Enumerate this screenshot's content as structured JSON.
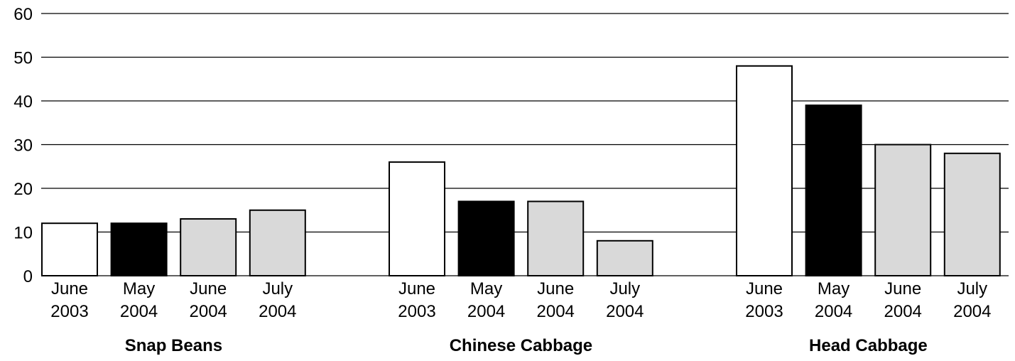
{
  "chart_data": {
    "type": "bar",
    "title": "",
    "xlabel": "",
    "ylabel": "",
    "ylim": [
      0,
      60
    ],
    "yticks": [
      0,
      10,
      20,
      30,
      40,
      50,
      60
    ],
    "grid": true,
    "categories": [
      [
        "June",
        "2003"
      ],
      [
        "May",
        "2004"
      ],
      [
        "June",
        "2004"
      ],
      [
        "July",
        "2004"
      ]
    ],
    "colors": [
      "#ffffff",
      "#000000",
      "#d9d9d9",
      "#d9d9d9"
    ],
    "groups": [
      {
        "name": "Snap Beans",
        "values": [
          12,
          12,
          13,
          15
        ]
      },
      {
        "name": "Chinese Cabbage",
        "values": [
          26,
          17,
          17,
          8
        ]
      },
      {
        "name": "Head Cabbage",
        "values": [
          48,
          39,
          30,
          28
        ]
      }
    ]
  }
}
